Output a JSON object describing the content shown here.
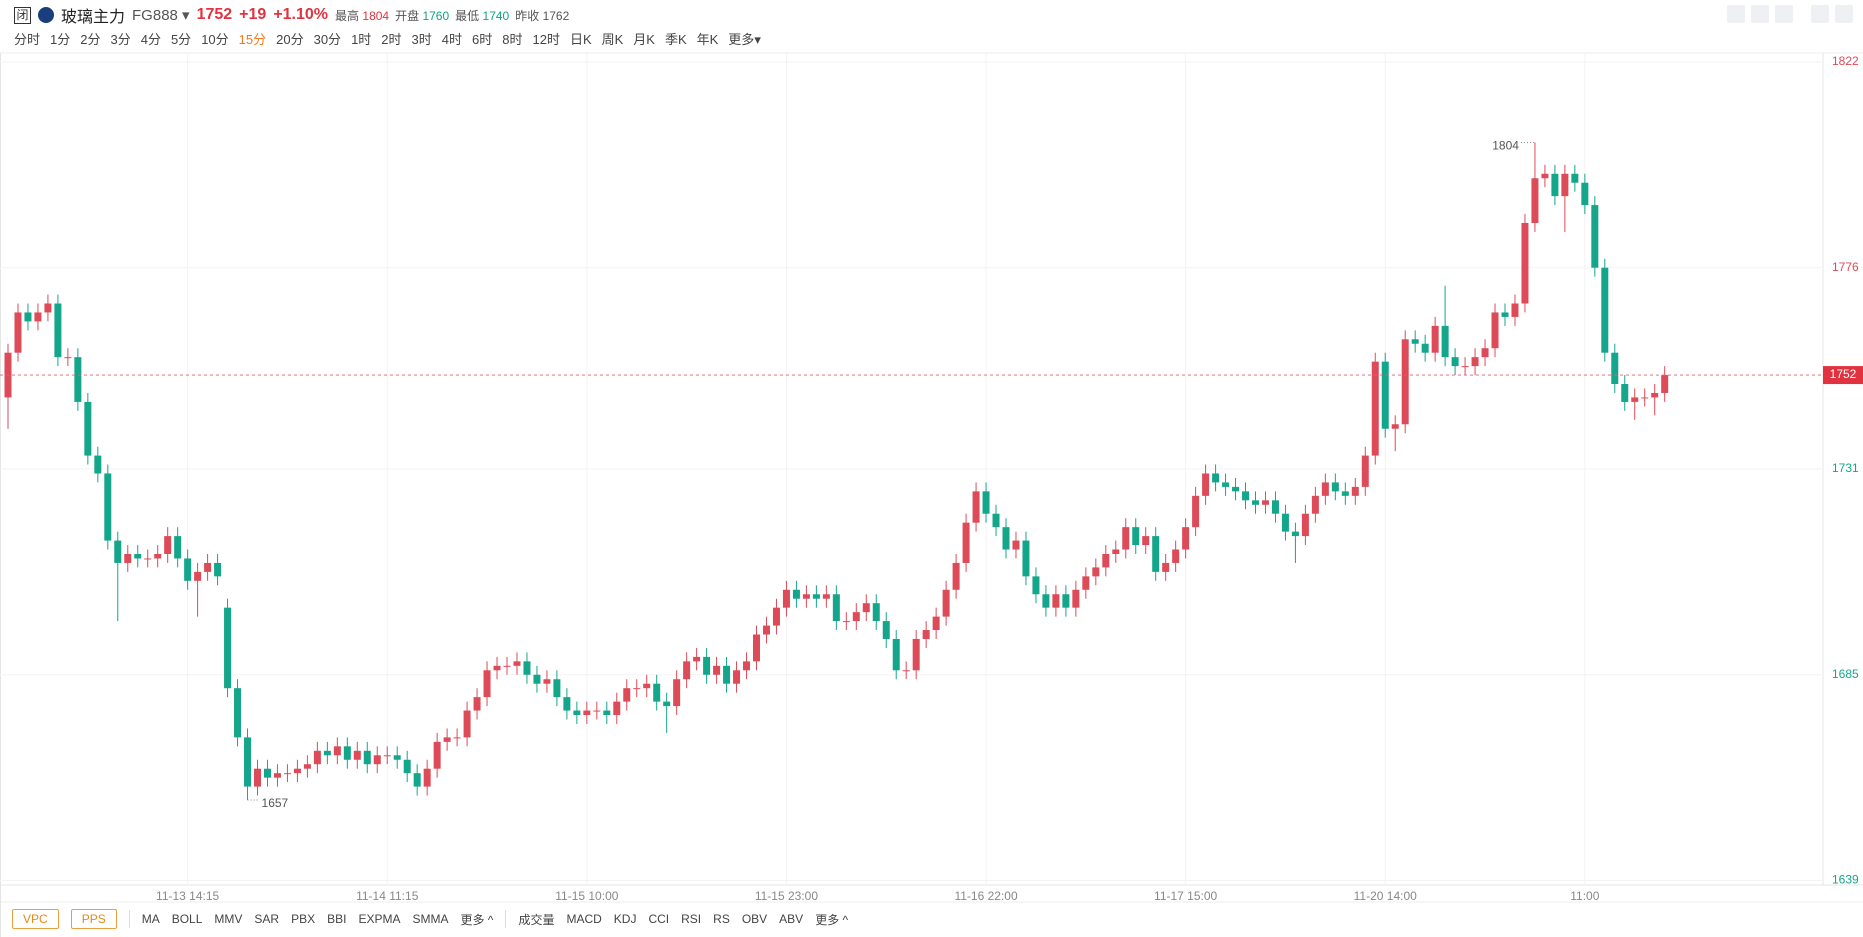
{
  "header": {
    "flag": "闭",
    "name": "玻璃主力",
    "code": "FG888",
    "price": 1752,
    "change": "+19",
    "change_pct": "+1.10%",
    "stats": [
      {
        "label": "最高",
        "value": 1804,
        "tone": "up"
      },
      {
        "label": "开盘",
        "value": 1760,
        "tone": "down"
      },
      {
        "label": "最低",
        "value": 1740,
        "tone": "down"
      },
      {
        "label": "昨收",
        "value": 1762,
        "tone": "flat"
      }
    ]
  },
  "periods": [
    "分时",
    "1分",
    "2分",
    "3分",
    "4分",
    "5分",
    "10分",
    "15分",
    "20分",
    "30分",
    "1时",
    "2时",
    "3时",
    "4时",
    "6时",
    "8时",
    "12时",
    "日K",
    "周K",
    "月K",
    "季K",
    "年K",
    "更多"
  ],
  "active_period": 7,
  "indicator_boxes": [
    "VPC",
    "PPS"
  ],
  "overlay_indicators": [
    "MA",
    "BOLL",
    "MMV",
    "SAR",
    "PBX",
    "BBI",
    "EXPMA",
    "SMMA",
    "更多"
  ],
  "sub_indicators": [
    "成交量",
    "MACD",
    "KDJ",
    "CCI",
    "RSI",
    "RS",
    "OBV",
    "ABV",
    "更多"
  ],
  "chart_data": {
    "type": "candlestick",
    "up_color": "#dd4a58",
    "down_color": "#14a68a",
    "grid": true,
    "ylim": [
      1638,
      1824
    ],
    "yticks": [
      1822,
      1776,
      1731,
      1685,
      1639
    ],
    "categories": [
      null,
      null,
      null,
      null,
      null,
      null,
      null,
      null,
      null,
      null,
      null,
      null,
      null,
      null,
      null,
      null,
      null,
      null,
      "11-13 14:15",
      null,
      null,
      null,
      null,
      null,
      null,
      null,
      null,
      null,
      null,
      null,
      null,
      null,
      null,
      null,
      null,
      null,
      null,
      null,
      "11-14 11:15",
      null,
      null,
      null,
      null,
      null,
      null,
      null,
      null,
      null,
      null,
      null,
      null,
      null,
      null,
      null,
      null,
      null,
      null,
      null,
      "11-15 10:00",
      null,
      null,
      null,
      null,
      null,
      null,
      null,
      null,
      null,
      null,
      null,
      null,
      null,
      null,
      null,
      null,
      null,
      null,
      null,
      "11-15 23:00",
      null,
      null,
      null,
      null,
      null,
      null,
      null,
      null,
      null,
      null,
      null,
      null,
      null,
      null,
      null,
      null,
      null,
      null,
      null,
      "11-16 22:00",
      null,
      null,
      null,
      null,
      null,
      null,
      null,
      null,
      null,
      null,
      null,
      null,
      null,
      null,
      null,
      null,
      null,
      null,
      null,
      "11-17 15:00",
      null,
      null,
      null,
      null,
      null,
      null,
      null,
      null,
      null,
      null,
      null,
      null,
      null,
      null,
      null,
      null,
      null,
      null,
      null,
      "11-20 14:00",
      null,
      null,
      null,
      null,
      null,
      null,
      null,
      null,
      null,
      null,
      null,
      null,
      null,
      null,
      null,
      null,
      null,
      null,
      null,
      "11:00",
      null,
      null,
      null,
      null,
      null,
      null,
      null,
      null
    ],
    "open": [
      1747,
      1757,
      1766,
      1764,
      1766,
      1768,
      1756,
      1756,
      1746,
      1734,
      1730,
      1715,
      1710,
      1712,
      1711,
      1711,
      1712,
      1716,
      1711,
      1706,
      1708,
      1710,
      1700,
      1682,
      1671,
      1660,
      1664,
      1662,
      1663,
      1663,
      1664,
      1665,
      1668,
      1667,
      1669,
      1666,
      1668,
      1665,
      1667,
      1667,
      1666,
      1663,
      1660,
      1664,
      1670,
      1671,
      1671,
      1677,
      1680,
      1686,
      1687,
      1687,
      1688,
      1685,
      1683,
      1684,
      1680,
      1677,
      1676,
      1677,
      1677,
      1676,
      1679,
      1682,
      1682,
      1683,
      1679,
      1678,
      1684,
      1688,
      1689,
      1685,
      1687,
      1683,
      1686,
      1688,
      1694,
      1696,
      1700,
      1704,
      1702,
      1703,
      1702,
      1703,
      1697,
      1697,
      1699,
      1701,
      1697,
      1693,
      1686,
      1686,
      1693,
      1695,
      1698,
      1704,
      1710,
      1719,
      1726,
      1721,
      1718,
      1713,
      1715,
      1707,
      1703,
      1700,
      1703,
      1700,
      1704,
      1707,
      1709,
      1712,
      1713,
      1718,
      1714,
      1716,
      1708,
      1710,
      1713,
      1718,
      1725,
      1730,
      1728,
      1727,
      1726,
      1724,
      1723,
      1724,
      1721,
      1717,
      1716,
      1721,
      1725,
      1728,
      1726,
      1725,
      1727,
      1734,
      1755,
      1740,
      1741,
      1760,
      1759,
      1757,
      1763,
      1756,
      1754,
      1754,
      1756,
      1758,
      1766,
      1765,
      1768,
      1786,
      1796,
      1797,
      1792,
      1797,
      1795,
      1790,
      1776,
      1757,
      1750,
      1746,
      1747,
      1747,
      1748
    ],
    "high": [
      1759,
      1768,
      1768,
      1768,
      1770,
      1770,
      1758,
      1758,
      1748,
      1736,
      1732,
      1717,
      1714,
      1714,
      1713,
      1714,
      1718,
      1718,
      1713,
      1710,
      1712,
      1712,
      1702,
      1684,
      1673,
      1666,
      1666,
      1665,
      1665,
      1666,
      1667,
      1670,
      1670,
      1671,
      1671,
      1670,
      1670,
      1669,
      1669,
      1669,
      1668,
      1665,
      1666,
      1672,
      1673,
      1673,
      1679,
      1682,
      1688,
      1689,
      1689,
      1690,
      1690,
      1687,
      1686,
      1686,
      1682,
      1679,
      1679,
      1679,
      1679,
      1681,
      1684,
      1684,
      1685,
      1685,
      1681,
      1686,
      1690,
      1691,
      1691,
      1689,
      1689,
      1688,
      1690,
      1696,
      1698,
      1702,
      1706,
      1706,
      1705,
      1705,
      1705,
      1705,
      1699,
      1701,
      1703,
      1703,
      1699,
      1695,
      1688,
      1695,
      1697,
      1700,
      1706,
      1712,
      1721,
      1728,
      1728,
      1723,
      1720,
      1717,
      1717,
      1709,
      1705,
      1705,
      1705,
      1706,
      1709,
      1711,
      1714,
      1715,
      1720,
      1720,
      1718,
      1718,
      1712,
      1715,
      1720,
      1727,
      1732,
      1732,
      1730,
      1729,
      1728,
      1726,
      1726,
      1726,
      1723,
      1719,
      1723,
      1727,
      1730,
      1730,
      1728,
      1729,
      1736,
      1757,
      1757,
      1743,
      1762,
      1762,
      1761,
      1765,
      1772,
      1758,
      1756,
      1758,
      1760,
      1768,
      1768,
      1770,
      1788,
      1804,
      1799,
      1799,
      1799,
      1799,
      1797,
      1792,
      1778,
      1759,
      1752,
      1749,
      1749,
      1750,
      1754
    ],
    "low": [
      1740,
      1755,
      1762,
      1762,
      1764,
      1754,
      1754,
      1744,
      1732,
      1728,
      1713,
      1697,
      1708,
      1709,
      1709,
      1709,
      1710,
      1709,
      1704,
      1698,
      1706,
      1705,
      1680,
      1669,
      1657,
      1658,
      1660,
      1660,
      1661,
      1661,
      1662,
      1663,
      1665,
      1665,
      1664,
      1664,
      1663,
      1663,
      1665,
      1664,
      1661,
      1658,
      1658,
      1662,
      1668,
      1669,
      1669,
      1675,
      1678,
      1684,
      1685,
      1685,
      1683,
      1681,
      1681,
      1678,
      1675,
      1674,
      1674,
      1675,
      1674,
      1674,
      1677,
      1680,
      1680,
      1677,
      1672,
      1676,
      1682,
      1686,
      1683,
      1683,
      1681,
      1681,
      1684,
      1686,
      1692,
      1694,
      1698,
      1700,
      1700,
      1700,
      1700,
      1695,
      1695,
      1695,
      1697,
      1695,
      1691,
      1684,
      1684,
      1684,
      1691,
      1693,
      1696,
      1702,
      1708,
      1717,
      1719,
      1716,
      1711,
      1711,
      1705,
      1701,
      1698,
      1698,
      1698,
      1698,
      1702,
      1705,
      1707,
      1710,
      1711,
      1712,
      1712,
      1706,
      1706,
      1708,
      1711,
      1716,
      1723,
      1726,
      1725,
      1724,
      1722,
      1721,
      1721,
      1719,
      1715,
      1710,
      1714,
      1719,
      1723,
      1724,
      1723,
      1723,
      1725,
      1732,
      1738,
      1735,
      1739,
      1757,
      1755,
      1755,
      1754,
      1752,
      1752,
      1752,
      1754,
      1756,
      1763,
      1763,
      1766,
      1784,
      1794,
      1790,
      1784,
      1793,
      1788,
      1774,
      1755,
      1748,
      1744,
      1742,
      1745,
      1743,
      1746
    ],
    "close": [
      1757,
      1766,
      1764,
      1766,
      1768,
      1756,
      1756,
      1746,
      1734,
      1730,
      1715,
      1710,
      1712,
      1711,
      1711,
      1712,
      1716,
      1711,
      1706,
      1708,
      1710,
      1707,
      1682,
      1671,
      1660,
      1664,
      1662,
      1663,
      1663,
      1664,
      1665,
      1668,
      1667,
      1669,
      1666,
      1668,
      1665,
      1667,
      1667,
      1666,
      1663,
      1660,
      1664,
      1670,
      1671,
      1671,
      1677,
      1680,
      1686,
      1687,
      1687,
      1688,
      1685,
      1683,
      1684,
      1680,
      1677,
      1676,
      1677,
      1677,
      1676,
      1679,
      1682,
      1682,
      1683,
      1679,
      1678,
      1684,
      1688,
      1689,
      1685,
      1687,
      1683,
      1686,
      1688,
      1694,
      1696,
      1700,
      1704,
      1702,
      1703,
      1702,
      1703,
      1697,
      1697,
      1699,
      1701,
      1697,
      1693,
      1686,
      1686,
      1693,
      1695,
      1698,
      1704,
      1710,
      1719,
      1726,
      1721,
      1718,
      1713,
      1715,
      1707,
      1703,
      1700,
      1703,
      1700,
      1704,
      1707,
      1709,
      1712,
      1713,
      1718,
      1714,
      1716,
      1708,
      1710,
      1713,
      1718,
      1725,
      1730,
      1728,
      1727,
      1726,
      1724,
      1723,
      1724,
      1721,
      1717,
      1716,
      1721,
      1725,
      1728,
      1726,
      1725,
      1727,
      1734,
      1755,
      1740,
      1741,
      1760,
      1759,
      1757,
      1763,
      1756,
      1754,
      1754,
      1756,
      1758,
      1766,
      1765,
      1768,
      1786,
      1796,
      1797,
      1792,
      1797,
      1795,
      1790,
      1776,
      1757,
      1750,
      1746,
      1747,
      1747,
      1748,
      1752
    ]
  }
}
